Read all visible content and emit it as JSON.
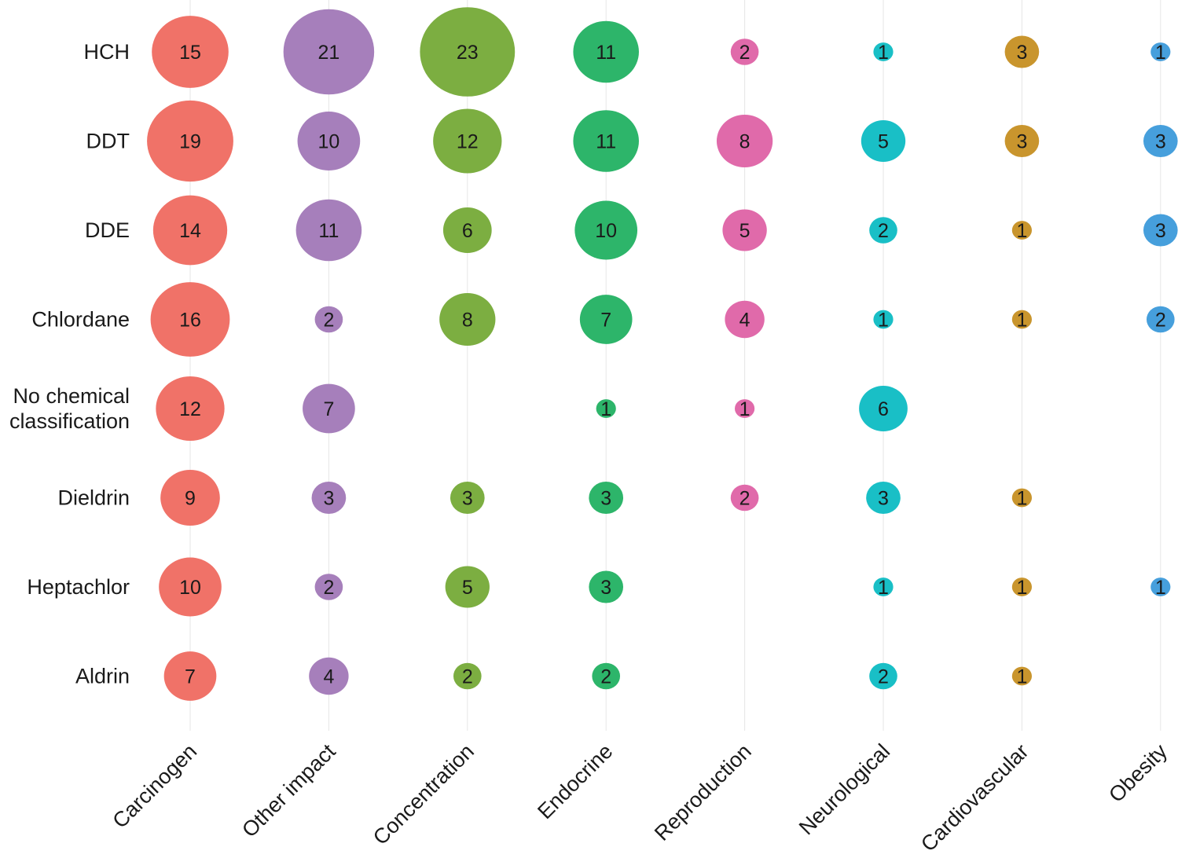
{
  "chart_data": {
    "type": "bubble-matrix",
    "title": "",
    "xlabel": "",
    "ylabel": "",
    "grid": true,
    "rows": [
      "HCH",
      "DDT",
      "DDE",
      "Chlordane",
      "No chemical classification",
      "Dieldrin",
      "Heptachlor",
      "Aldrin"
    ],
    "columns": [
      "Carcinogen",
      "Other impact",
      "Concentration",
      "Endocrine",
      "Reproduction",
      "Neurological",
      "Cardiovascular",
      "Obesity"
    ],
    "colors": [
      "#f07268",
      "#a67fbb",
      "#7cae41",
      "#2db56a",
      "#e06aaa",
      "#19bfc6",
      "#c9952d",
      "#469fdc"
    ],
    "values": [
      [
        15,
        21,
        23,
        11,
        2,
        1,
        3,
        1
      ],
      [
        19,
        10,
        12,
        11,
        8,
        5,
        3,
        3
      ],
      [
        14,
        11,
        6,
        10,
        5,
        2,
        1,
        3
      ],
      [
        16,
        2,
        8,
        7,
        4,
        1,
        1,
        2
      ],
      [
        12,
        7,
        null,
        1,
        1,
        6,
        null,
        null
      ],
      [
        9,
        3,
        3,
        3,
        2,
        3,
        1,
        null
      ],
      [
        10,
        2,
        5,
        3,
        null,
        1,
        1,
        1
      ],
      [
        7,
        4,
        2,
        2,
        null,
        2,
        1,
        null
      ]
    ]
  }
}
